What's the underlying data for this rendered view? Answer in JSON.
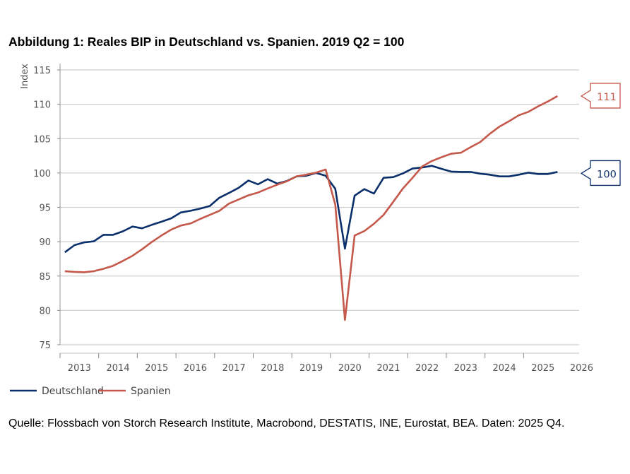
{
  "chart_data": {
    "type": "line",
    "title": "Abbildung 1: Reales BIP in Deutschland vs. Spanien. 2019 Q2 = 100",
    "ylabel": "Index",
    "xlabel": "",
    "ylim": [
      75,
      115
    ],
    "yticks": [
      "75",
      "80",
      "85",
      "90",
      "95",
      "100",
      "105",
      "110",
      "115"
    ],
    "xticks": [
      "2013",
      "2014",
      "2015",
      "2016",
      "2017",
      "2018",
      "2019",
      "2020",
      "2021",
      "2022",
      "2023",
      "2024",
      "2025",
      "2026"
    ],
    "x_start": "2013 Q1",
    "x_end": "2025 Q4",
    "frequency": "quarterly",
    "grid": true,
    "legend_position": "bottom-left",
    "series": [
      {
        "name": "Deutschland",
        "color": "#0b2f6b",
        "end_label": "100",
        "values": [
          88.45,
          89.5,
          89.9,
          90.05,
          91.0,
          91.0,
          91.5,
          92.2,
          91.95,
          92.45,
          92.9,
          93.4,
          94.25,
          94.5,
          94.8,
          95.2,
          96.4,
          97.1,
          97.85,
          98.9,
          98.35,
          99.1,
          98.45,
          98.85,
          99.5,
          99.6,
          100.0,
          99.6,
          97.7,
          89.0,
          96.7,
          97.65,
          97.0,
          99.3,
          99.4,
          99.95,
          100.65,
          100.8,
          101.05,
          100.6,
          100.2,
          100.15,
          100.15,
          99.9,
          99.75,
          99.5,
          99.5,
          99.75,
          100.05,
          99.85,
          99.85,
          100.15
        ]
      },
      {
        "name": "Spanien",
        "color": "#c4584a",
        "end_label": "111",
        "values": [
          85.7,
          85.6,
          85.55,
          85.7,
          86.05,
          86.5,
          87.2,
          87.95,
          88.9,
          89.95,
          90.9,
          91.75,
          92.35,
          92.65,
          93.3,
          93.9,
          94.5,
          95.55,
          96.15,
          96.75,
          97.15,
          97.75,
          98.3,
          98.8,
          99.5,
          99.75,
          100.05,
          100.5,
          95.4,
          78.6,
          90.9,
          91.55,
          92.6,
          93.9,
          95.8,
          97.75,
          99.3,
          100.95,
          101.75,
          102.3,
          102.8,
          102.95,
          103.75,
          104.5,
          105.7,
          106.75,
          107.55,
          108.4,
          108.9,
          109.7,
          110.4,
          111.2
        ]
      }
    ]
  },
  "source": "Quelle: Flossbach von Storch Research Institute, Macrobond, DESTATIS, INE, Eurostat, BEA. Daten: 2025 Q4."
}
